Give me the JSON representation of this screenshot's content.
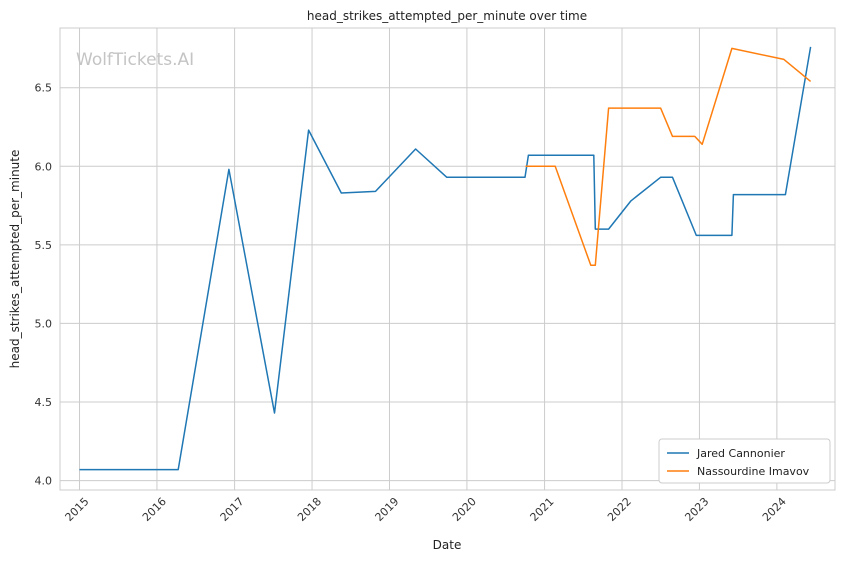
{
  "chart_data": {
    "type": "line",
    "title": "head_strikes_attempted_per_minute over time",
    "xlabel": "Date",
    "ylabel": "head_strikes_attempted_per_minute",
    "watermark": "WolfTickets.AI",
    "xlim": [
      "2014-10-01",
      "2024-10-01"
    ],
    "ylim": [
      3.94,
      6.88
    ],
    "x_ticks": [
      "2015",
      "2016",
      "2017",
      "2018",
      "2019",
      "2020",
      "2021",
      "2022",
      "2023",
      "2024"
    ],
    "y_ticks": [
      "4.0",
      "4.5",
      "5.0",
      "5.5",
      "6.0",
      "6.5"
    ],
    "grid": true,
    "legend_position": "bottom-right",
    "series": [
      {
        "name": "Jared Cannonier",
        "color": "#1f77b4",
        "points": [
          [
            "2015-01-01",
            4.07
          ],
          [
            "2016-04-10",
            4.07
          ],
          [
            "2016-12-05",
            5.98
          ],
          [
            "2017-07-08",
            4.43
          ],
          [
            "2017-12-16",
            6.23
          ],
          [
            "2018-05-19",
            5.83
          ],
          [
            "2018-10-27",
            5.84
          ],
          [
            "2019-05-04",
            6.11
          ],
          [
            "2019-09-28",
            5.93
          ],
          [
            "2020-10-01",
            5.93
          ],
          [
            "2020-10-17",
            6.07
          ],
          [
            "2021-08-21",
            6.07
          ],
          [
            "2021-08-28",
            5.6
          ],
          [
            "2021-10-30",
            5.6
          ],
          [
            "2022-02-12",
            5.78
          ],
          [
            "2022-07-02",
            5.93
          ],
          [
            "2022-08-27",
            5.93
          ],
          [
            "2022-12-17",
            5.56
          ],
          [
            "2023-06-03",
            5.56
          ],
          [
            "2023-06-10",
            5.82
          ],
          [
            "2024-02-10",
            5.82
          ],
          [
            "2024-06-08",
            6.76
          ]
        ]
      },
      {
        "name": "Nassourdine Imavov",
        "color": "#ff7f0e",
        "points": [
          [
            "2020-10-03",
            6.0
          ],
          [
            "2021-02-20",
            6.0
          ],
          [
            "2021-08-07",
            5.37
          ],
          [
            "2021-08-28",
            5.37
          ],
          [
            "2021-10-30",
            6.37
          ],
          [
            "2022-07-02",
            6.37
          ],
          [
            "2022-08-27",
            6.19
          ],
          [
            "2022-12-10",
            6.19
          ],
          [
            "2023-01-14",
            6.14
          ],
          [
            "2023-06-03",
            6.75
          ],
          [
            "2024-02-03",
            6.68
          ],
          [
            "2024-06-08",
            6.54
          ]
        ]
      }
    ]
  }
}
